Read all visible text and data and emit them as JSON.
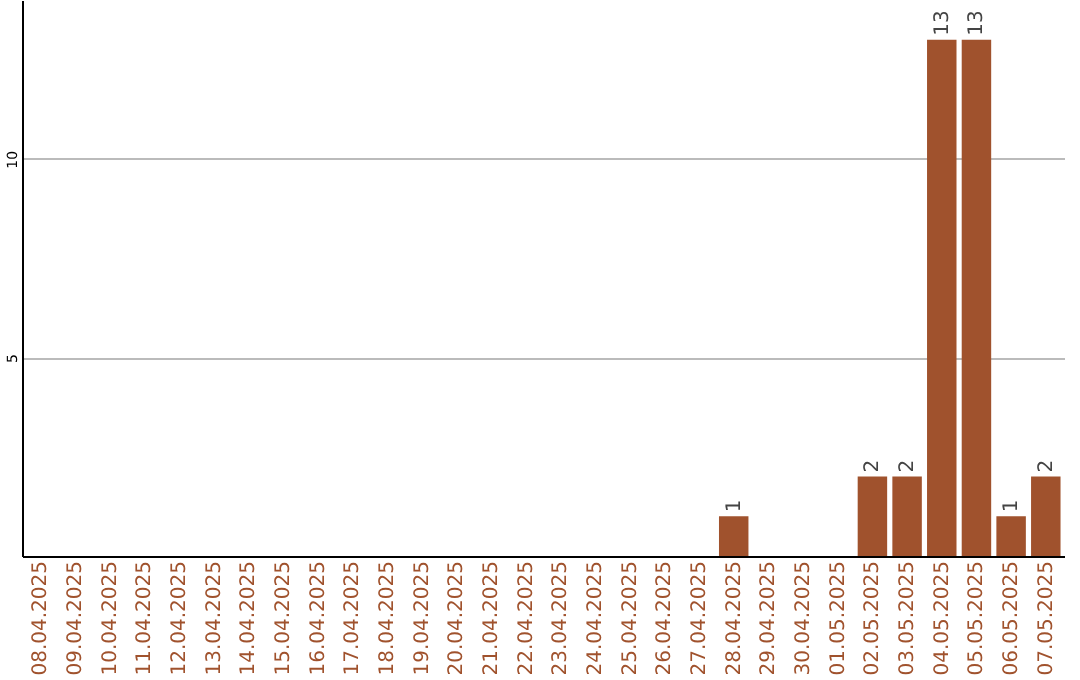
{
  "chart_data": {
    "type": "bar",
    "categories": [
      "08.04.2025",
      "09.04.2025",
      "10.04.2025",
      "11.04.2025",
      "12.04.2025",
      "13.04.2025",
      "14.04.2025",
      "15.04.2025",
      "16.04.2025",
      "17.04.2025",
      "18.04.2025",
      "19.04.2025",
      "20.04.2025",
      "21.04.2025",
      "22.04.2025",
      "23.04.2025",
      "24.04.2025",
      "25.04.2025",
      "26.04.2025",
      "27.04.2025",
      "28.04.2025",
      "29.04.2025",
      "30.04.2025",
      "01.05.2025",
      "02.05.2025",
      "03.05.2025",
      "04.05.2025",
      "05.05.2025",
      "06.05.2025",
      "07.05.2025"
    ],
    "values": [
      0,
      0,
      0,
      0,
      0,
      0,
      0,
      0,
      0,
      0,
      0,
      0,
      0,
      0,
      0,
      0,
      0,
      0,
      0,
      0,
      1,
      0,
      0,
      0,
      2,
      2,
      13,
      13,
      1,
      2
    ],
    "value_labels": [
      null,
      null,
      null,
      null,
      null,
      null,
      null,
      null,
      null,
      null,
      null,
      null,
      null,
      null,
      null,
      null,
      null,
      null,
      null,
      null,
      "1",
      null,
      null,
      null,
      "2",
      "2",
      "13",
      "13",
      "1",
      "2"
    ],
    "color": "#a0522d",
    "ylim": [
      0,
      14
    ],
    "yticks": [
      5,
      10
    ],
    "grid": "y"
  }
}
